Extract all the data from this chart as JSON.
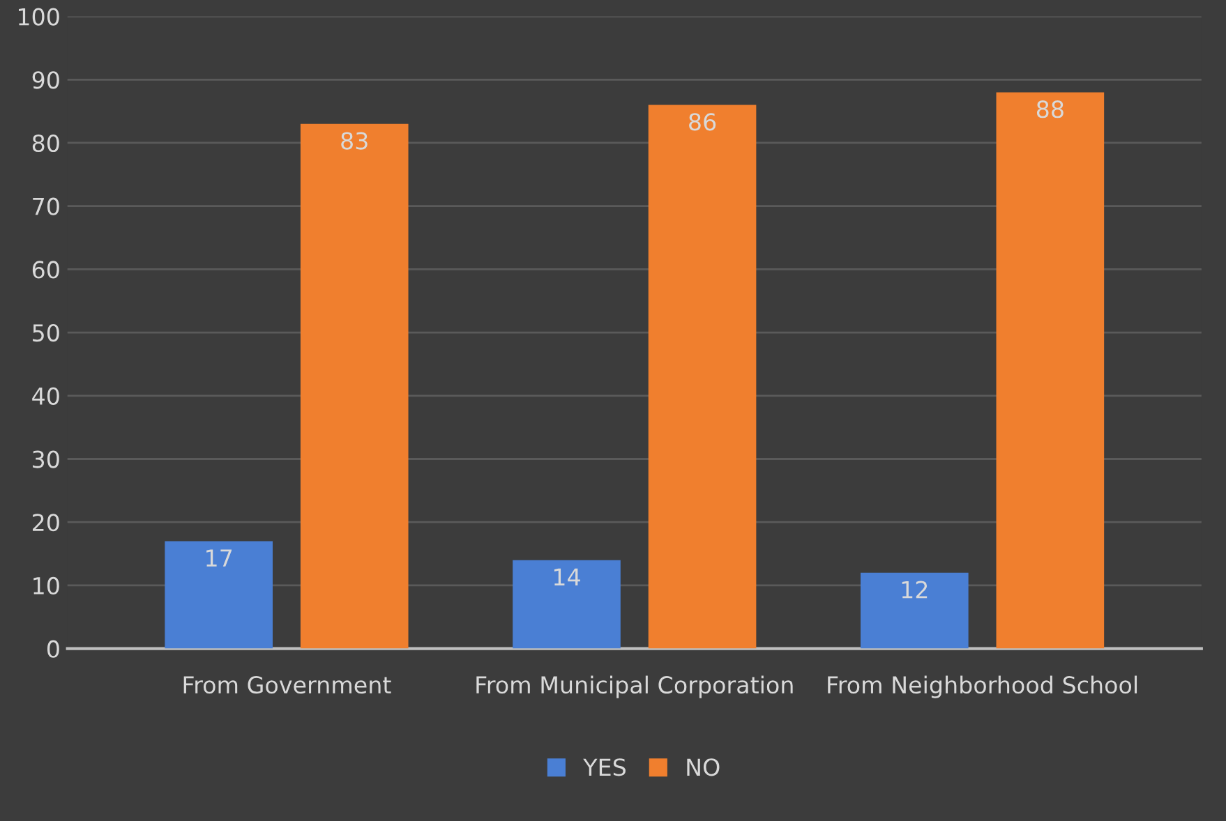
{
  "chart_data": {
    "type": "bar",
    "categories": [
      "From Government",
      "From Municipal Corporation",
      "From Neighborhood School"
    ],
    "series": [
      {
        "name": "YES",
        "color": "#4a7fd4",
        "values": [
          17,
          14,
          12
        ]
      },
      {
        "name": "NO",
        "color": "#f07f2e",
        "values": [
          83,
          86,
          88
        ]
      }
    ],
    "ylim": [
      0,
      100
    ],
    "yticks": [
      0,
      10,
      20,
      30,
      40,
      50,
      60,
      70,
      80,
      90,
      100
    ],
    "grid": "y",
    "legend": "bottom",
    "data_labels": true
  }
}
